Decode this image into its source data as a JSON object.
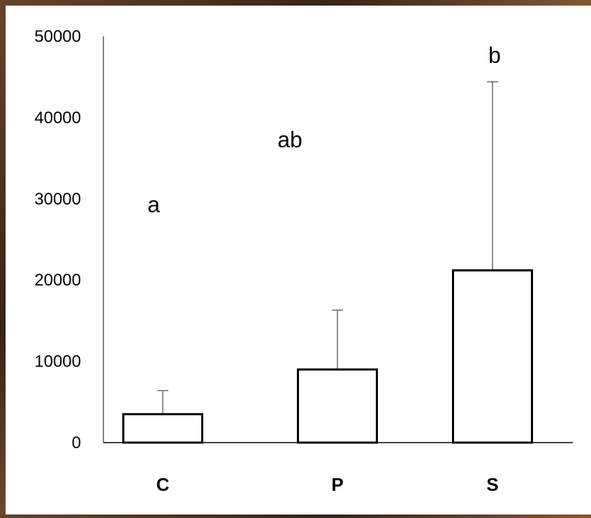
{
  "chart_data": {
    "type": "bar",
    "categories": [
      "C",
      "P",
      "S"
    ],
    "values": [
      3500,
      9000,
      21200
    ],
    "error_upper": [
      6400,
      16300,
      44400
    ],
    "significance_letters": [
      "a",
      "ab",
      "b"
    ],
    "ylim": [
      0,
      50000
    ],
    "yticks": [
      "0",
      "10000",
      "20000",
      "30000",
      "40000",
      "50000"
    ],
    "grid": false,
    "legend": "none"
  }
}
